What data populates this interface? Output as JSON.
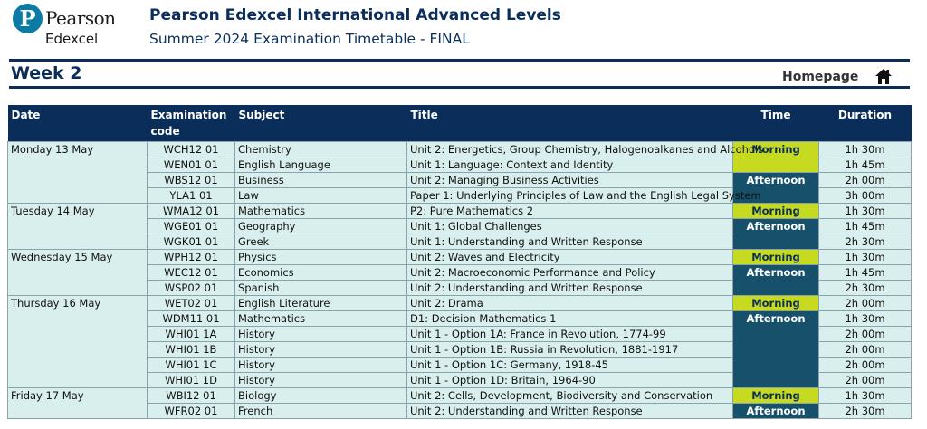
{
  "brand": {
    "logo_letter": "P",
    "name": "Pearson",
    "sub": "Edexcel"
  },
  "header": {
    "title": "Pearson Edexcel International Advanced Levels",
    "subtitle": "Summer 2024 Examination Timetable - FINAL"
  },
  "week_label": "Week 2",
  "homepage_label": "Homepage",
  "columns": [
    "Date",
    "Examination code",
    "Subject",
    "Title",
    "Time",
    "Duration"
  ],
  "days": [
    {
      "date": "Monday 13 May",
      "sessions": [
        {
          "time": "Morning",
          "exams": [
            {
              "code": "WCH12 01",
              "subject": "Chemistry",
              "title": "Unit 2: Energetics, Group Chemistry, Halogenoalkanes and Alcohols",
              "duration": "1h 30m"
            },
            {
              "code": "WEN01 01",
              "subject": "English Language",
              "title": "Unit 1: Language: Context and Identity",
              "duration": "1h 45m"
            }
          ]
        },
        {
          "time": "Afternoon",
          "exams": [
            {
              "code": "WBS12 01",
              "subject": "Business",
              "title": "Unit 2: Managing Business Activities",
              "duration": "2h 00m"
            },
            {
              "code": "YLA1 01",
              "subject": "Law",
              "title": "Paper 1: Underlying Principles of Law and the English Legal System",
              "duration": "3h 00m"
            }
          ]
        }
      ]
    },
    {
      "date": "Tuesday 14 May",
      "sessions": [
        {
          "time": "Morning",
          "exams": [
            {
              "code": "WMA12 01",
              "subject": "Mathematics",
              "title": "P2: Pure Mathematics 2",
              "duration": "1h 30m"
            }
          ]
        },
        {
          "time": "Afternoon",
          "exams": [
            {
              "code": "WGE01 01",
              "subject": "Geography",
              "title": "Unit 1: Global Challenges",
              "duration": "1h 45m"
            },
            {
              "code": "WGK01 01",
              "subject": "Greek",
              "title": "Unit 1: Understanding and Written Response",
              "duration": "2h 30m"
            }
          ]
        }
      ]
    },
    {
      "date": "Wednesday 15 May",
      "sessions": [
        {
          "time": "Morning",
          "exams": [
            {
              "code": "WPH12 01",
              "subject": "Physics",
              "title": "Unit 2: Waves and Electricity",
              "duration": "1h 30m"
            }
          ]
        },
        {
          "time": "Afternoon",
          "exams": [
            {
              "code": "WEC12 01",
              "subject": "Economics",
              "title": "Unit 2: Macroeconomic Performance and Policy",
              "duration": "1h 45m"
            },
            {
              "code": "WSP02 01",
              "subject": "Spanish",
              "title": "Unit 2: Understanding and Written Response",
              "duration": "2h 30m"
            }
          ]
        }
      ]
    },
    {
      "date": "Thursday 16 May",
      "sessions": [
        {
          "time": "Morning",
          "exams": [
            {
              "code": "WET02 01",
              "subject": "English Literature",
              "title": "Unit 2: Drama",
              "duration": "2h 00m"
            }
          ]
        },
        {
          "time": "Afternoon",
          "exams": [
            {
              "code": "WDM11 01",
              "subject": "Mathematics",
              "title": "D1: Decision Mathematics 1",
              "duration": "1h 30m"
            },
            {
              "code": "WHI01 1A",
              "subject": "History",
              "title": "Unit 1 - Option 1A: France in Revolution, 1774-99",
              "duration": "2h 00m"
            },
            {
              "code": "WHI01 1B",
              "subject": "History",
              "title": "Unit 1 - Option 1B: Russia in Revolution, 1881-1917",
              "duration": "2h 00m"
            },
            {
              "code": "WHI01 1C",
              "subject": "History",
              "title": "Unit 1 - Option 1C: Germany, 1918-45",
              "duration": "2h 00m"
            },
            {
              "code": "WHI01 1D",
              "subject": "History",
              "title": "Unit 1 - Option 1D: Britain, 1964-90",
              "duration": "2h 00m"
            }
          ]
        }
      ]
    },
    {
      "date": "Friday 17 May",
      "sessions": [
        {
          "time": "Morning",
          "exams": [
            {
              "code": "WBI12 01",
              "subject": "Biology",
              "title": "Unit 2: Cells, Development, Biodiversity and Conservation",
              "duration": "1h 30m"
            }
          ]
        },
        {
          "time": "Afternoon",
          "exams": [
            {
              "code": "WFR02 01",
              "subject": "French",
              "title": "Unit 2: Understanding and Written Response",
              "duration": "2h 30m"
            }
          ]
        }
      ]
    }
  ],
  "colors": {
    "navy": "#0a2d5a",
    "row_bg": "#d9efee",
    "morning": "#c6db1f",
    "afternoon": "#16506a",
    "logo": "#0b7aa5"
  },
  "icons": {
    "logo": "pearson-logo-icon",
    "home": "home-icon"
  }
}
